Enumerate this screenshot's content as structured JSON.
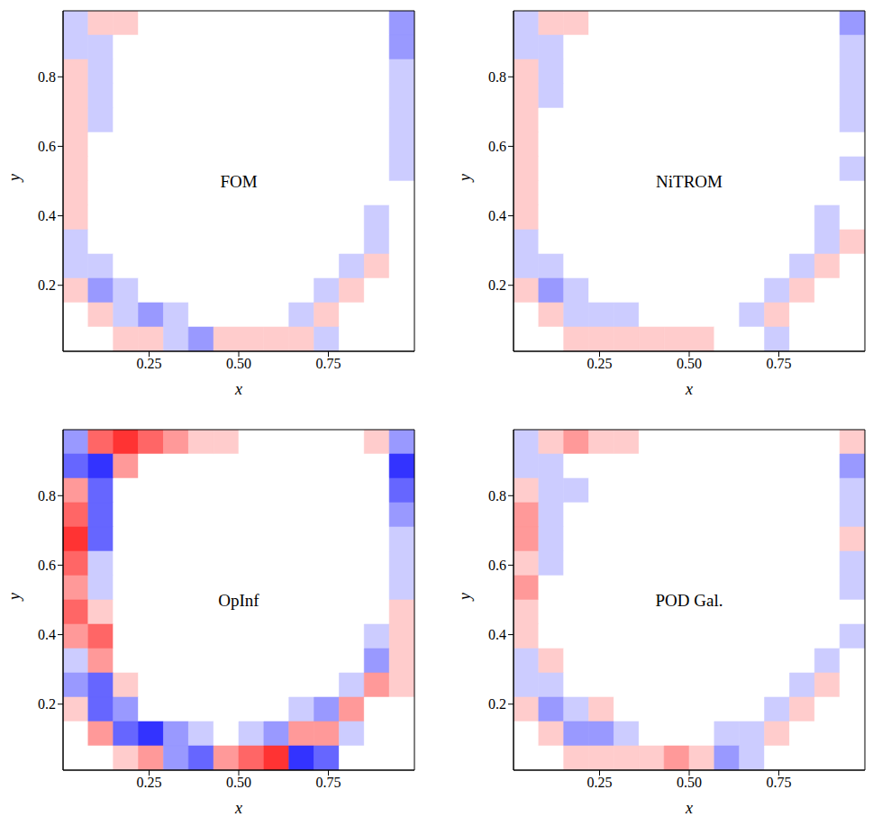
{
  "chart_data": [
    {
      "type": "heatmap",
      "title": "FOM",
      "xlabel": "x",
      "ylabel": "y",
      "xlim": [
        0.01,
        0.99
      ],
      "ylim": [
        0.01,
        0.99
      ],
      "xticks": [
        0.25,
        {
          "value": 0.5,
          "label": "0.50"
        },
        0.75
      ],
      "yticks": [
        0.2,
        0.4,
        0.6,
        0.8
      ],
      "zlim": [
        -5,
        5
      ],
      "cells": [
        [
          -1,
          1,
          1,
          0,
          0,
          0,
          0,
          0,
          0,
          0,
          0,
          0,
          0,
          -2
        ],
        [
          -1,
          -1,
          0,
          0,
          0,
          0,
          0,
          0,
          0,
          0,
          0,
          0,
          0,
          -2
        ],
        [
          1,
          -1,
          0,
          0,
          0,
          0,
          0,
          0,
          0,
          0,
          0,
          0,
          0,
          -1
        ],
        [
          1,
          -1,
          0,
          0,
          0,
          0,
          0,
          0,
          0,
          0,
          0,
          0,
          0,
          -1
        ],
        [
          1,
          -1,
          0,
          0,
          0,
          0,
          0,
          0,
          0,
          0,
          0,
          0,
          0,
          -1
        ],
        [
          1,
          0,
          0,
          0,
          0,
          0,
          0,
          0,
          0,
          0,
          0,
          0,
          0,
          -1
        ],
        [
          1,
          0,
          0,
          0,
          0,
          0,
          0,
          0,
          0,
          0,
          0,
          0,
          0,
          -1
        ],
        [
          1,
          0,
          0,
          0,
          0,
          0,
          0,
          0,
          0,
          0,
          0,
          0,
          0,
          0
        ],
        [
          1,
          0,
          0,
          0,
          0,
          0,
          0,
          0,
          0,
          0,
          0,
          0,
          -1,
          0
        ],
        [
          -1,
          0,
          0,
          0,
          0,
          0,
          0,
          0,
          0,
          0,
          0,
          0,
          -1,
          0
        ],
        [
          -1,
          -1,
          0,
          0,
          0,
          0,
          0,
          0,
          0,
          0,
          0,
          -1,
          1,
          0
        ],
        [
          1,
          -2,
          -1,
          0,
          0,
          0,
          0,
          0,
          0,
          0,
          -1,
          1,
          0,
          0
        ],
        [
          0,
          1,
          -1,
          -2,
          -1,
          0,
          0,
          0,
          0,
          -1,
          1,
          0,
          0,
          0
        ],
        [
          0,
          0,
          1,
          1,
          -1,
          -2,
          1,
          1,
          1,
          1,
          -1,
          0,
          0,
          0
        ]
      ]
    },
    {
      "type": "heatmap",
      "title": "NiTROM",
      "xlabel": "x",
      "ylabel": "y",
      "xlim": [
        0.01,
        0.99
      ],
      "ylim": [
        0.01,
        0.99
      ],
      "xticks": [
        0.25,
        {
          "value": 0.5,
          "label": "0.50"
        },
        0.75
      ],
      "yticks": [
        0.2,
        0.4,
        0.6,
        0.8
      ],
      "zlim": [
        -5,
        5
      ],
      "cells": [
        [
          -1,
          1,
          1,
          0,
          0,
          0,
          0,
          0,
          0,
          0,
          0,
          0,
          0,
          -2
        ],
        [
          -1,
          -1,
          0,
          0,
          0,
          0,
          0,
          0,
          0,
          0,
          0,
          0,
          0,
          -1
        ],
        [
          1,
          -1,
          0,
          0,
          0,
          0,
          0,
          0,
          0,
          0,
          0,
          0,
          0,
          -1
        ],
        [
          1,
          -1,
          0,
          0,
          0,
          0,
          0,
          0,
          0,
          0,
          0,
          0,
          0,
          -1
        ],
        [
          1,
          0,
          0,
          0,
          0,
          0,
          0,
          0,
          0,
          0,
          0,
          0,
          0,
          -1
        ],
        [
          1,
          0,
          0,
          0,
          0,
          0,
          0,
          0,
          0,
          0,
          0,
          0,
          0,
          0
        ],
        [
          1,
          0,
          0,
          0,
          0,
          0,
          0,
          0,
          0,
          0,
          0,
          0,
          0,
          -1
        ],
        [
          1,
          0,
          0,
          0,
          0,
          0,
          0,
          0,
          0,
          0,
          0,
          0,
          0,
          0
        ],
        [
          1,
          0,
          0,
          0,
          0,
          0,
          0,
          0,
          0,
          0,
          0,
          0,
          -1,
          0
        ],
        [
          -1,
          0,
          0,
          0,
          0,
          0,
          0,
          0,
          0,
          0,
          0,
          0,
          -1,
          1
        ],
        [
          -1,
          -1,
          0,
          0,
          0,
          0,
          0,
          0,
          0,
          0,
          0,
          -1,
          1,
          0
        ],
        [
          1,
          -2,
          -1,
          0,
          0,
          0,
          0,
          0,
          0,
          0,
          -1,
          1,
          0,
          0
        ],
        [
          0,
          1,
          -1,
          -1,
          -1,
          0,
          0,
          0,
          0,
          -1,
          1,
          0,
          0,
          0
        ],
        [
          0,
          0,
          1,
          1,
          1,
          1,
          1,
          1,
          0,
          0,
          -1,
          0,
          0,
          0
        ]
      ]
    },
    {
      "type": "heatmap",
      "title": "OpInf",
      "xlabel": "x",
      "ylabel": "y",
      "xlim": [
        0.01,
        0.99
      ],
      "ylim": [
        0.01,
        0.99
      ],
      "xticks": [
        0.25,
        {
          "value": 0.5,
          "label": "0.50"
        },
        0.75
      ],
      "yticks": [
        0.2,
        0.4,
        0.6,
        0.8
      ],
      "zlim": [
        -5,
        5
      ],
      "cells": [
        [
          -2,
          3,
          4,
          3,
          2,
          1,
          1,
          0,
          0,
          0,
          0,
          0,
          1,
          -2
        ],
        [
          -3,
          -4,
          2,
          0,
          0,
          0,
          0,
          0,
          0,
          0,
          0,
          0,
          0,
          -4
        ],
        [
          2,
          -3,
          0,
          0,
          0,
          0,
          0,
          0,
          0,
          0,
          0,
          0,
          0,
          -3
        ],
        [
          3,
          -3,
          0,
          0,
          0,
          0,
          0,
          0,
          0,
          0,
          0,
          0,
          0,
          -2
        ],
        [
          4,
          -3,
          0,
          0,
          0,
          0,
          0,
          0,
          0,
          0,
          0,
          0,
          0,
          -1
        ],
        [
          3,
          -1,
          0,
          0,
          0,
          0,
          0,
          0,
          0,
          0,
          0,
          0,
          0,
          -1
        ],
        [
          2,
          -1,
          0,
          0,
          0,
          0,
          0,
          0,
          0,
          0,
          0,
          0,
          0,
          -1
        ],
        [
          3,
          1,
          0,
          0,
          0,
          0,
          0,
          0,
          0,
          0,
          0,
          0,
          0,
          1
        ],
        [
          2,
          3,
          0,
          0,
          0,
          0,
          0,
          0,
          0,
          0,
          0,
          0,
          -1,
          1
        ],
        [
          -1,
          2,
          0,
          0,
          0,
          0,
          0,
          0,
          0,
          0,
          0,
          0,
          -2,
          1
        ],
        [
          -2,
          -3,
          1,
          0,
          0,
          0,
          0,
          0,
          0,
          0,
          0,
          -1,
          2,
          1
        ],
        [
          1,
          -3,
          -2,
          0,
          0,
          0,
          0,
          0,
          0,
          -1,
          -2,
          2,
          0,
          0
        ],
        [
          0,
          2,
          -3,
          -4,
          -2,
          -1,
          0,
          -1,
          -2,
          2,
          2,
          -1,
          0,
          0
        ],
        [
          0,
          0,
          1,
          2,
          -2,
          -3,
          2,
          3,
          4,
          -4,
          -3,
          0,
          0,
          0
        ]
      ]
    },
    {
      "type": "heatmap",
      "title": "POD Gal.",
      "xlabel": "x",
      "ylabel": "y",
      "xlim": [
        0.01,
        0.99
      ],
      "ylim": [
        0.01,
        0.99
      ],
      "xticks": [
        0.25,
        {
          "value": 0.5,
          "label": "0.50"
        },
        0.75
      ],
      "yticks": [
        0.2,
        0.4,
        0.6,
        0.8
      ],
      "zlim": [
        -5,
        5
      ],
      "cells": [
        [
          -1,
          1,
          2,
          1,
          1,
          0,
          0,
          0,
          0,
          0,
          0,
          0,
          0,
          1
        ],
        [
          -1,
          -1,
          0,
          0,
          0,
          0,
          0,
          0,
          0,
          0,
          0,
          0,
          0,
          -2
        ],
        [
          1,
          -1,
          -1,
          0,
          0,
          0,
          0,
          0,
          0,
          0,
          0,
          0,
          0,
          -1
        ],
        [
          2,
          -1,
          0,
          0,
          0,
          0,
          0,
          0,
          0,
          0,
          0,
          0,
          0,
          -1
        ],
        [
          2,
          -1,
          0,
          0,
          0,
          0,
          0,
          0,
          0,
          0,
          0,
          0,
          0,
          1
        ],
        [
          1,
          -1,
          0,
          0,
          0,
          0,
          0,
          0,
          0,
          0,
          0,
          0,
          0,
          -1
        ],
        [
          2,
          0,
          0,
          0,
          0,
          0,
          0,
          0,
          0,
          0,
          0,
          0,
          0,
          -1
        ],
        [
          1,
          0,
          0,
          0,
          0,
          0,
          0,
          0,
          0,
          0,
          0,
          0,
          0,
          0
        ],
        [
          1,
          0,
          0,
          0,
          0,
          0,
          0,
          0,
          0,
          0,
          0,
          0,
          0,
          -1
        ],
        [
          -1,
          1,
          0,
          0,
          0,
          0,
          0,
          0,
          0,
          0,
          0,
          0,
          -1,
          0
        ],
        [
          -1,
          -1,
          0,
          0,
          0,
          0,
          0,
          0,
          0,
          0,
          0,
          -1,
          1,
          0
        ],
        [
          1,
          -2,
          -1,
          1,
          0,
          0,
          0,
          0,
          0,
          0,
          -1,
          1,
          0,
          0
        ],
        [
          0,
          1,
          -2,
          -2,
          -1,
          0,
          0,
          0,
          -1,
          -1,
          1,
          0,
          0,
          0
        ],
        [
          0,
          0,
          1,
          1,
          1,
          1,
          2,
          1,
          -2,
          -1,
          0,
          0,
          0,
          0
        ]
      ]
    }
  ]
}
